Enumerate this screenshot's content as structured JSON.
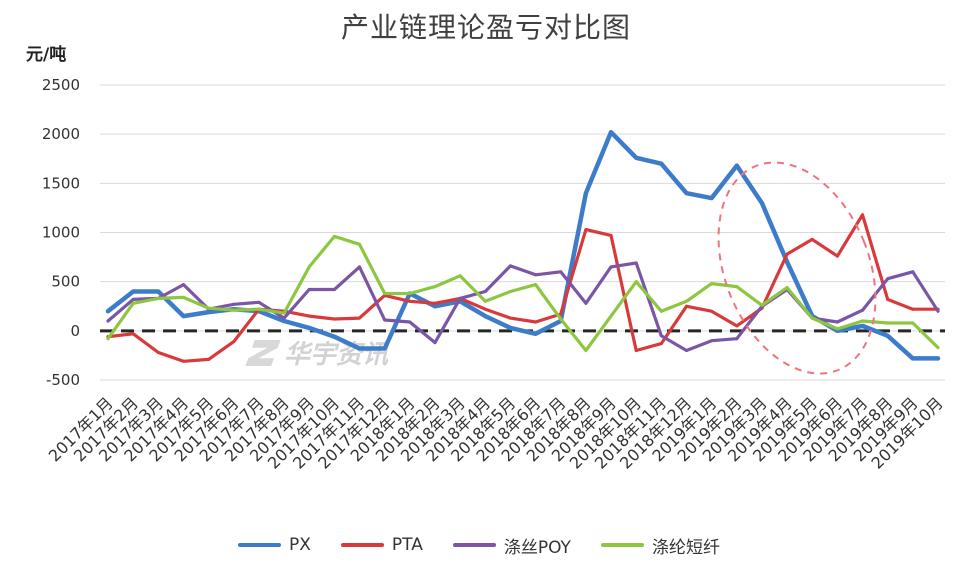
{
  "chart_data": {
    "type": "line",
    "title": "产业链理论盈亏对比图",
    "xlabel": "",
    "ylabel": "元/吨",
    "ylim": [
      -500,
      2500
    ],
    "yticks": [
      2500,
      2000,
      1500,
      1000,
      500,
      0,
      -500
    ],
    "grid": true,
    "legend": "bottom",
    "categories": [
      "2017年1月",
      "2017年2月",
      "2017年3月",
      "2017年4月",
      "2017年5月",
      "2017年6月",
      "2017年7月",
      "2017年8月",
      "2017年9月",
      "2017年10月",
      "2017年11月",
      "2017年12月",
      "2018年1月",
      "2018年2月",
      "2018年3月",
      "2018年4月",
      "2018年5月",
      "2018年6月",
      "2018年7月",
      "2018年8月",
      "2018年9月",
      "2018年10月",
      "2018年11月",
      "2018年12月",
      "2019年1月",
      "2019年2月",
      "2019年3月",
      "2019年4月",
      "2019年5月",
      "2019年6月",
      "2019年7月",
      "2019年8月",
      "2019年9月",
      "2019年10月"
    ],
    "series": [
      {
        "name": "PX",
        "color": "#3d7cc9",
        "values": [
          200,
          400,
          400,
          150,
          190,
          220,
          200,
          100,
          30,
          -60,
          -180,
          -180,
          380,
          250,
          300,
          150,
          30,
          -30,
          100,
          1400,
          2020,
          1760,
          1700,
          1400,
          1350,
          1680,
          1300,
          700,
          150,
          0,
          50,
          -50,
          -280,
          -280
        ]
      },
      {
        "name": "PTA",
        "color": "#d83a3c",
        "values": [
          -60,
          -30,
          -220,
          -310,
          -290,
          -110,
          220,
          200,
          150,
          120,
          130,
          360,
          300,
          280,
          330,
          220,
          130,
          90,
          170,
          1030,
          970,
          -200,
          -130,
          250,
          200,
          50,
          230,
          780,
          930,
          760,
          1180,
          320,
          220,
          220
        ]
      },
      {
        "name": "涤丝POY",
        "color": "#7b55a6",
        "values": [
          100,
          320,
          330,
          470,
          220,
          270,
          290,
          130,
          420,
          420,
          650,
          110,
          90,
          -120,
          330,
          400,
          660,
          570,
          600,
          280,
          650,
          690,
          -50,
          -200,
          -100,
          -80,
          250,
          420,
          130,
          90,
          210,
          530,
          600,
          200
        ]
      },
      {
        "name": "涤纶短纤",
        "color": "#8dc63f",
        "values": [
          -80,
          280,
          330,
          340,
          230,
          210,
          220,
          180,
          650,
          960,
          880,
          380,
          380,
          450,
          560,
          300,
          400,
          470,
          120,
          -200,
          150,
          500,
          200,
          300,
          480,
          450,
          260,
          440,
          130,
          20,
          100,
          80,
          80,
          -170
        ]
      }
    ]
  },
  "watermark": {
    "text": "华宇资讯"
  }
}
